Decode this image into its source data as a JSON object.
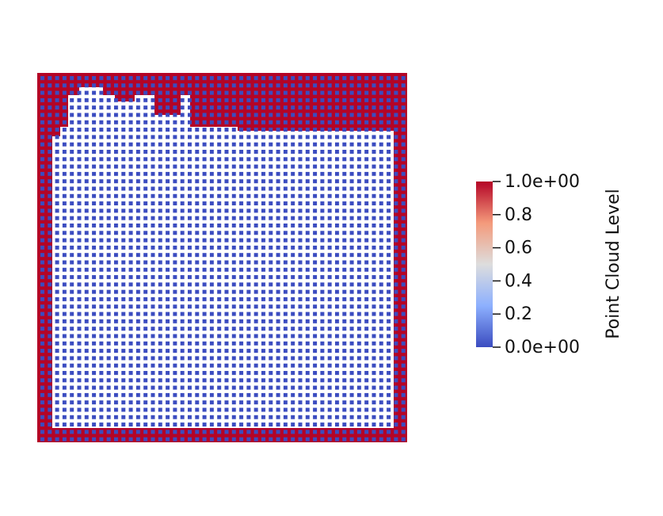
{
  "colorbar": {
    "title": "Point Cloud Level",
    "range": [
      0,
      1
    ],
    "ticks": [
      {
        "value": 1,
        "label": "1.0e+00"
      },
      0.8,
      0.6,
      0.4,
      0.2,
      {
        "value": 0,
        "label": "0.0e+00"
      }
    ]
  }
}
